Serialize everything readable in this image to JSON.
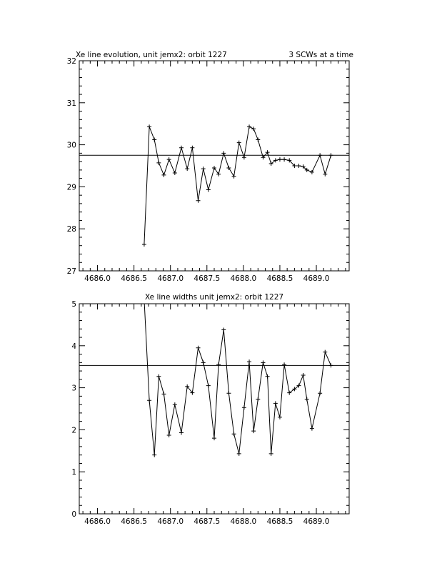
{
  "colors": {
    "background": "#ffffff",
    "ink": "#000000"
  },
  "chart_data": [
    {
      "type": "line",
      "title": "Xe line evolution, unit jemx2: orbit 1227",
      "annotation": "3 SCWs at a time",
      "xlim": [
        4685.75,
        4689.45
      ],
      "ylim": [
        27,
        32
      ],
      "xticks": [
        4686.0,
        4686.5,
        4687.0,
        4687.5,
        4688.0,
        4688.5,
        4689.0
      ],
      "xtick_labels": [
        "4686.0",
        "4686.5",
        "4687.0",
        "4687.5",
        "4688.0",
        "4688.5",
        "4689.0"
      ],
      "yticks": [
        27,
        28,
        29,
        30,
        31,
        32
      ],
      "ytick_labels": [
        "27",
        "28",
        "29",
        "30",
        "31",
        "32"
      ],
      "reference_line": 29.75,
      "series": [
        {
          "x": [
            4686.64,
            4686.71,
            4686.78,
            4686.84,
            4686.91,
            4686.98,
            4687.06,
            4687.15,
            4687.23,
            4687.3,
            4687.38,
            4687.45,
            4687.52,
            4687.6,
            4687.66,
            4687.73,
            4687.8,
            4687.87,
            4687.94,
            4688.01,
            4688.08,
            4688.14,
            4688.2,
            4688.27,
            4688.33,
            4688.38,
            4688.44,
            4688.5,
            4688.56,
            4688.63,
            4688.7,
            4688.76,
            4688.82,
            4688.87,
            4688.94,
            4689.05,
            4689.12,
            4689.2
          ],
          "y": [
            27.63,
            30.43,
            30.12,
            29.57,
            29.28,
            29.65,
            29.33,
            29.93,
            29.43,
            29.93,
            28.67,
            29.43,
            28.93,
            29.45,
            29.3,
            29.8,
            29.45,
            29.25,
            30.05,
            29.7,
            30.43,
            30.38,
            30.12,
            29.7,
            29.82,
            29.55,
            29.63,
            29.65,
            29.65,
            29.63,
            29.5,
            29.5,
            29.48,
            29.4,
            29.35,
            29.75,
            29.3,
            29.75
          ]
        }
      ]
    },
    {
      "type": "line",
      "title": "Xe line widths unit jemx2: orbit 1227",
      "xlim": [
        4685.75,
        4689.45
      ],
      "ylim": [
        0,
        5
      ],
      "xticks": [
        4686.0,
        4686.5,
        4687.0,
        4687.5,
        4688.0,
        4688.5,
        4689.0
      ],
      "xtick_labels": [
        "4686.0",
        "4686.5",
        "4687.0",
        "4687.5",
        "4688.0",
        "4688.5",
        "4689.0"
      ],
      "yticks": [
        0,
        1,
        2,
        3,
        4,
        5
      ],
      "ytick_labels": [
        "0",
        "1",
        "2",
        "3",
        "4",
        "5"
      ],
      "reference_line": 3.53,
      "series": [
        {
          "x": [
            4686.64,
            4686.71,
            4686.78,
            4686.84,
            4686.91,
            4686.98,
            4687.06,
            4687.15,
            4687.23,
            4687.3,
            4687.38,
            4687.45,
            4687.52,
            4687.6,
            4687.66,
            4687.73,
            4687.8,
            4687.87,
            4687.94,
            4688.01,
            4688.08,
            4688.14,
            4688.2,
            4688.27,
            4688.33,
            4688.38,
            4688.44,
            4688.5,
            4688.56,
            4688.63,
            4688.7,
            4688.76,
            4688.82,
            4688.87,
            4688.94,
            4689.05,
            4689.12,
            4689.2
          ],
          "y": [
            5.1,
            2.7,
            1.4,
            3.27,
            2.85,
            1.87,
            2.6,
            1.93,
            3.03,
            2.88,
            3.95,
            3.6,
            3.05,
            1.8,
            3.55,
            4.38,
            2.87,
            1.9,
            1.43,
            2.53,
            3.62,
            1.97,
            2.73,
            3.6,
            3.27,
            1.43,
            2.63,
            2.3,
            3.55,
            2.88,
            2.97,
            3.05,
            3.3,
            2.73,
            2.03,
            2.87,
            3.85,
            3.53
          ]
        }
      ]
    }
  ]
}
